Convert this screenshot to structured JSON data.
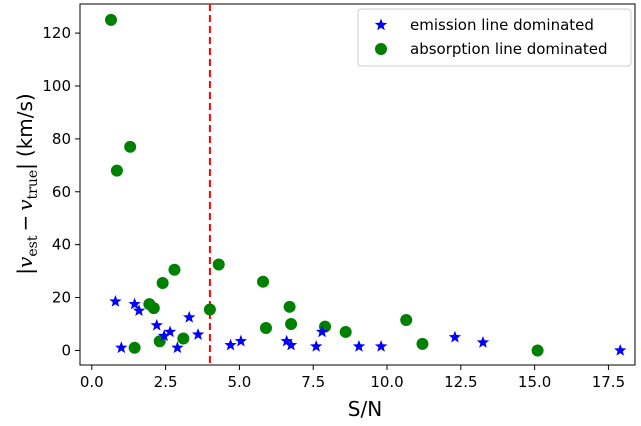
{
  "chart_data": {
    "type": "scatter",
    "xlabel": "S/N",
    "ylabel": "|v_est − v_true| (km/s)",
    "ylabel_parts": {
      "left_bar": "|",
      "v1": "v",
      "sub1": "est",
      "minus": "−",
      "v2": "v",
      "sub2": "true",
      "right_bar": "|",
      "unit": "(km/s)"
    },
    "xlim": [
      -0.4,
      18.4
    ],
    "ylim": [
      -5.5,
      131
    ],
    "xticks": [
      0.0,
      2.5,
      5.0,
      7.5,
      10.0,
      12.5,
      15.0,
      17.5
    ],
    "xtick_labels": [
      "0.0",
      "2.5",
      "5.0",
      "7.5",
      "10.0",
      "12.5",
      "15.0",
      "17.5"
    ],
    "yticks": [
      0,
      20,
      40,
      60,
      80,
      100,
      120
    ],
    "ytick_labels": [
      "0",
      "20",
      "40",
      "60",
      "80",
      "100",
      "120"
    ],
    "grid": false,
    "legend_position": "top-right",
    "threshold_line": {
      "x": 4.0,
      "color": "#ff0000",
      "style": "dashed"
    },
    "series": [
      {
        "name": "emission line dominated",
        "marker": "star",
        "color": "#0000ff",
        "points": [
          [
            0.8,
            18.5
          ],
          [
            1.0,
            1.0
          ],
          [
            1.45,
            17.5
          ],
          [
            1.6,
            15.0
          ],
          [
            2.2,
            9.5
          ],
          [
            2.45,
            5.5
          ],
          [
            2.65,
            7.0
          ],
          [
            2.9,
            1.0
          ],
          [
            3.3,
            12.5
          ],
          [
            3.6,
            6.0
          ],
          [
            4.7,
            2.0
          ],
          [
            5.05,
            3.5
          ],
          [
            6.6,
            3.5
          ],
          [
            6.75,
            2.0
          ],
          [
            7.6,
            1.5
          ],
          [
            7.8,
            7.0
          ],
          [
            9.05,
            1.5
          ],
          [
            9.8,
            1.5
          ],
          [
            12.3,
            5.0
          ],
          [
            13.25,
            3.0
          ],
          [
            17.9,
            0.0
          ]
        ]
      },
      {
        "name": "absorption line dominated",
        "marker": "circle",
        "color": "#008000",
        "points": [
          [
            0.65,
            125.0
          ],
          [
            0.85,
            68.0
          ],
          [
            1.3,
            77.0
          ],
          [
            1.45,
            1.0
          ],
          [
            1.95,
            17.5
          ],
          [
            2.1,
            16.0
          ],
          [
            2.3,
            3.5
          ],
          [
            2.4,
            25.5
          ],
          [
            2.8,
            30.5
          ],
          [
            3.1,
            4.5
          ],
          [
            4.0,
            15.5
          ],
          [
            4.3,
            32.5
          ],
          [
            5.8,
            26.0
          ],
          [
            5.9,
            8.5
          ],
          [
            6.7,
            16.5
          ],
          [
            6.75,
            10.0
          ],
          [
            7.9,
            9.0
          ],
          [
            8.6,
            7.0
          ],
          [
            10.65,
            11.5
          ],
          [
            11.2,
            2.5
          ],
          [
            15.1,
            0.0
          ]
        ]
      }
    ]
  }
}
